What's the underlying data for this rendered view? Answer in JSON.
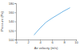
{
  "chart_data": {
    "type": "line",
    "x_label": "Air velocity (m/s)",
    "y_label": "Pressure (Pa)",
    "x": [
      3,
      4,
      5,
      6,
      7,
      8,
      9
    ],
    "values": [
      110,
      125,
      138,
      147,
      155,
      163,
      170
    ],
    "color": "#4fa3e0",
    "xlim": [
      0,
      10
    ],
    "xticks": [
      0,
      2,
      4,
      6,
      8,
      10
    ],
    "ylim": [
      100,
      180
    ],
    "yticks": [
      100,
      120,
      140,
      160,
      180
    ],
    "grid": false
  }
}
